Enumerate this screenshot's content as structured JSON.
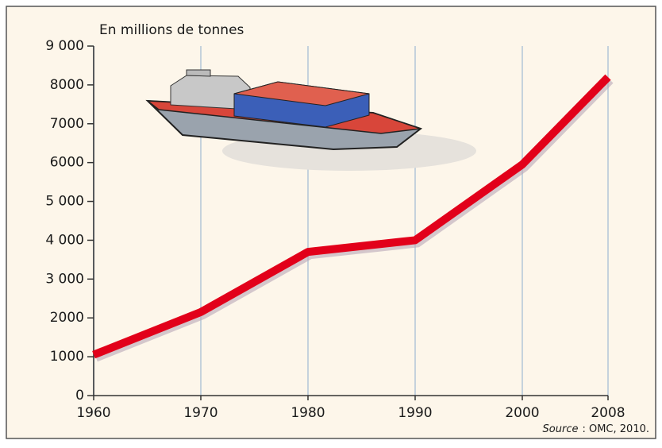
{
  "chart_data": {
    "type": "line",
    "ylabel": "En millions de tonnes",
    "x": [
      1960,
      1970,
      1980,
      1990,
      2000,
      2008
    ],
    "values": [
      1050,
      2150,
      3700,
      4000,
      5950,
      8200
    ],
    "color": "#e2001a",
    "xlim": [
      1960,
      2008
    ],
    "xticks": [
      1960,
      1970,
      1980,
      1990,
      2000,
      2008
    ],
    "ylim": [
      0,
      9000
    ],
    "yticks": [
      0,
      1000,
      2000,
      {
        "value": 3000,
        "label": "3 000"
      },
      {
        "value": 4000,
        "label": "4 000"
      },
      {
        "value": 5000,
        "label": "5 000"
      },
      6000,
      7000,
      8000,
      {
        "value": 9000,
        "label": "9 000"
      }
    ],
    "grid": "x",
    "source": {
      "label": "Source",
      "text": ": OMC, 2010."
    }
  }
}
